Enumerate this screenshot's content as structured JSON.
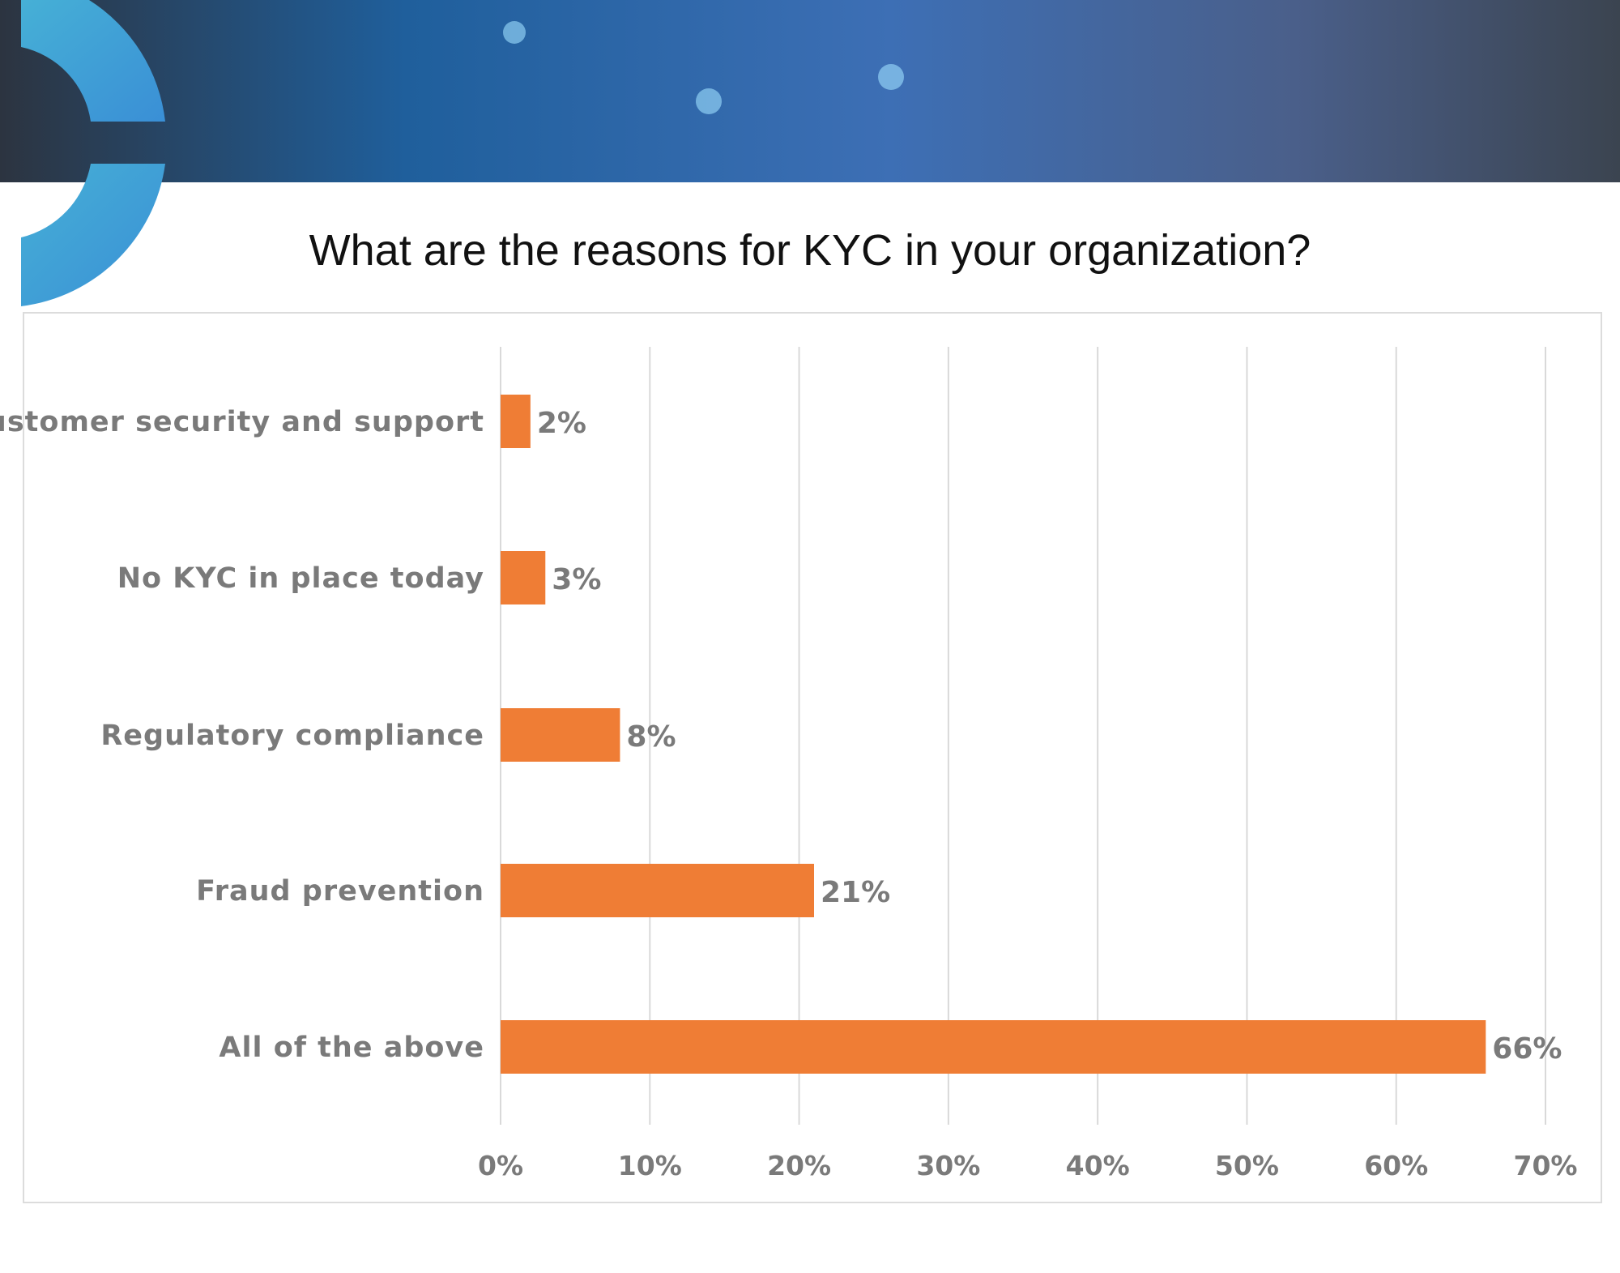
{
  "colors": {
    "bar": "#ef7d35",
    "grid": "#d9d9d9",
    "label": "#7a7a7a",
    "banner_dark": "#3b4450",
    "banner_blue": "#3a6fb0",
    "logo_arc": "#3aa7d8"
  },
  "chart_data": {
    "type": "bar",
    "orientation": "horizontal",
    "title": "What are the reasons for KYC in your organization?",
    "categories": [
      "Customer security and support",
      "No KYC in place today",
      "Regulatory compliance",
      "Fraud prevention",
      "All of the above"
    ],
    "values": [
      2,
      3,
      8,
      21,
      66
    ],
    "value_labels": [
      "2%",
      "3%",
      "8%",
      "21%",
      "66%"
    ],
    "xlim": [
      0,
      70
    ],
    "xticks": [
      0,
      10,
      20,
      30,
      40,
      50,
      60,
      70
    ],
    "xtick_labels": [
      "0%",
      "10%",
      "20%",
      "30%",
      "40%",
      "50%",
      "60%",
      "70%"
    ],
    "grid": true,
    "legend": "none"
  }
}
